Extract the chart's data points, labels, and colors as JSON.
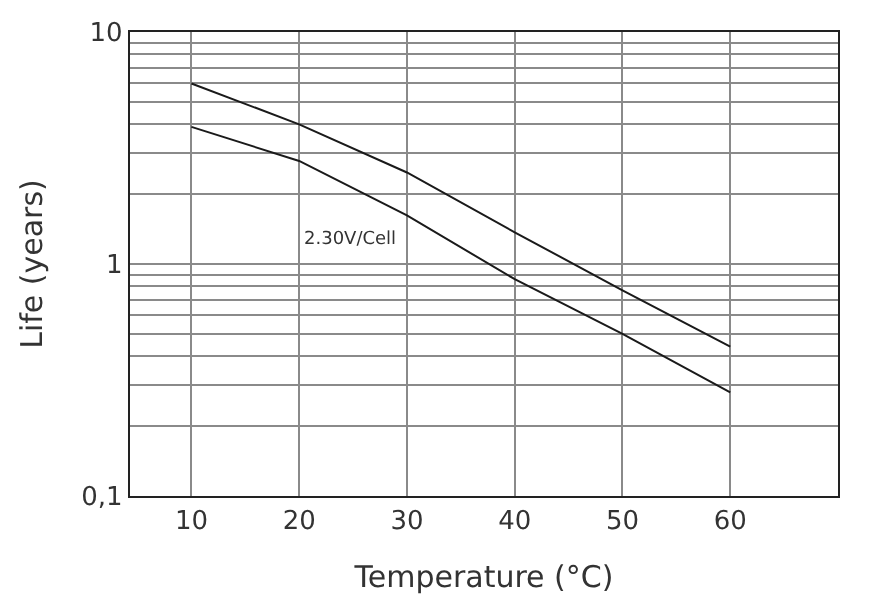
{
  "chart_data": {
    "type": "line",
    "xlabel": "Temperature (°C)",
    "ylabel": "Life (years)",
    "log": "y",
    "grid": true,
    "marker": "none",
    "line_style": "solid",
    "xlim": [
      4.3,
      70
    ],
    "xticks": [
      10,
      20,
      30,
      40,
      50,
      60
    ],
    "ylim": [
      0.1,
      10
    ],
    "yticks": [
      {
        "value": 0.1,
        "label": "0,1"
      },
      {
        "value": 0.2,
        "label": null
      },
      {
        "value": 0.3,
        "label": null
      },
      {
        "value": 0.4,
        "label": null
      },
      {
        "value": 0.5,
        "label": null
      },
      {
        "value": 0.6,
        "label": null
      },
      {
        "value": 0.7,
        "label": null
      },
      {
        "value": 0.8,
        "label": null
      },
      {
        "value": 0.9,
        "label": null
      },
      1,
      {
        "value": 2,
        "label": null
      },
      {
        "value": 3,
        "label": null
      },
      {
        "value": 4,
        "label": null
      },
      {
        "value": 5,
        "label": null
      },
      {
        "value": 6,
        "label": null
      },
      {
        "value": 7,
        "label": null
      },
      {
        "value": 8,
        "label": null
      },
      {
        "value": 9,
        "label": null
      },
      10
    ],
    "x": [
      10,
      20,
      30,
      40,
      50,
      60
    ],
    "series": [
      {
        "color": "#1a1a1a",
        "values": [
          3.9,
          2.78,
          1.62,
          0.86,
          0.5,
          0.28
        ]
      },
      {
        "color": "#1a1a1a",
        "values": [
          6.0,
          4.0,
          2.48,
          1.37,
          0.77,
          0.44
        ]
      }
    ],
    "annotations": [
      "2.30V/Cell"
    ]
  }
}
